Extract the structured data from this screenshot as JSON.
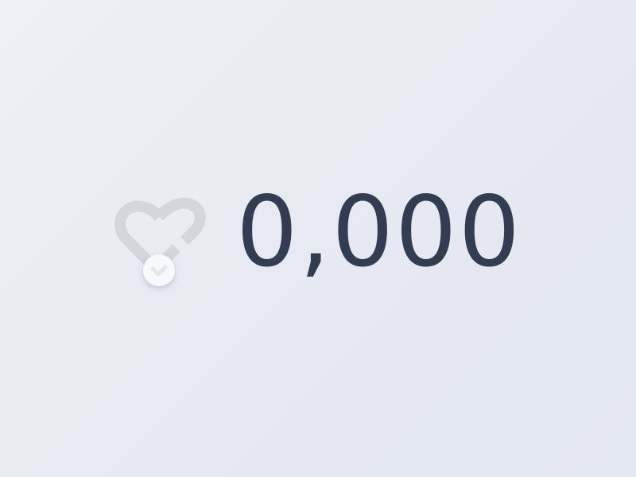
{
  "like": {
    "count": "0,000",
    "icon": "heart-icon",
    "liked": false
  },
  "colors": {
    "count_text": "#333d52",
    "heart_outline": "#d3d6dd",
    "knob_fill": "#f8f9fb",
    "knob_check": "#e4e6eb"
  }
}
